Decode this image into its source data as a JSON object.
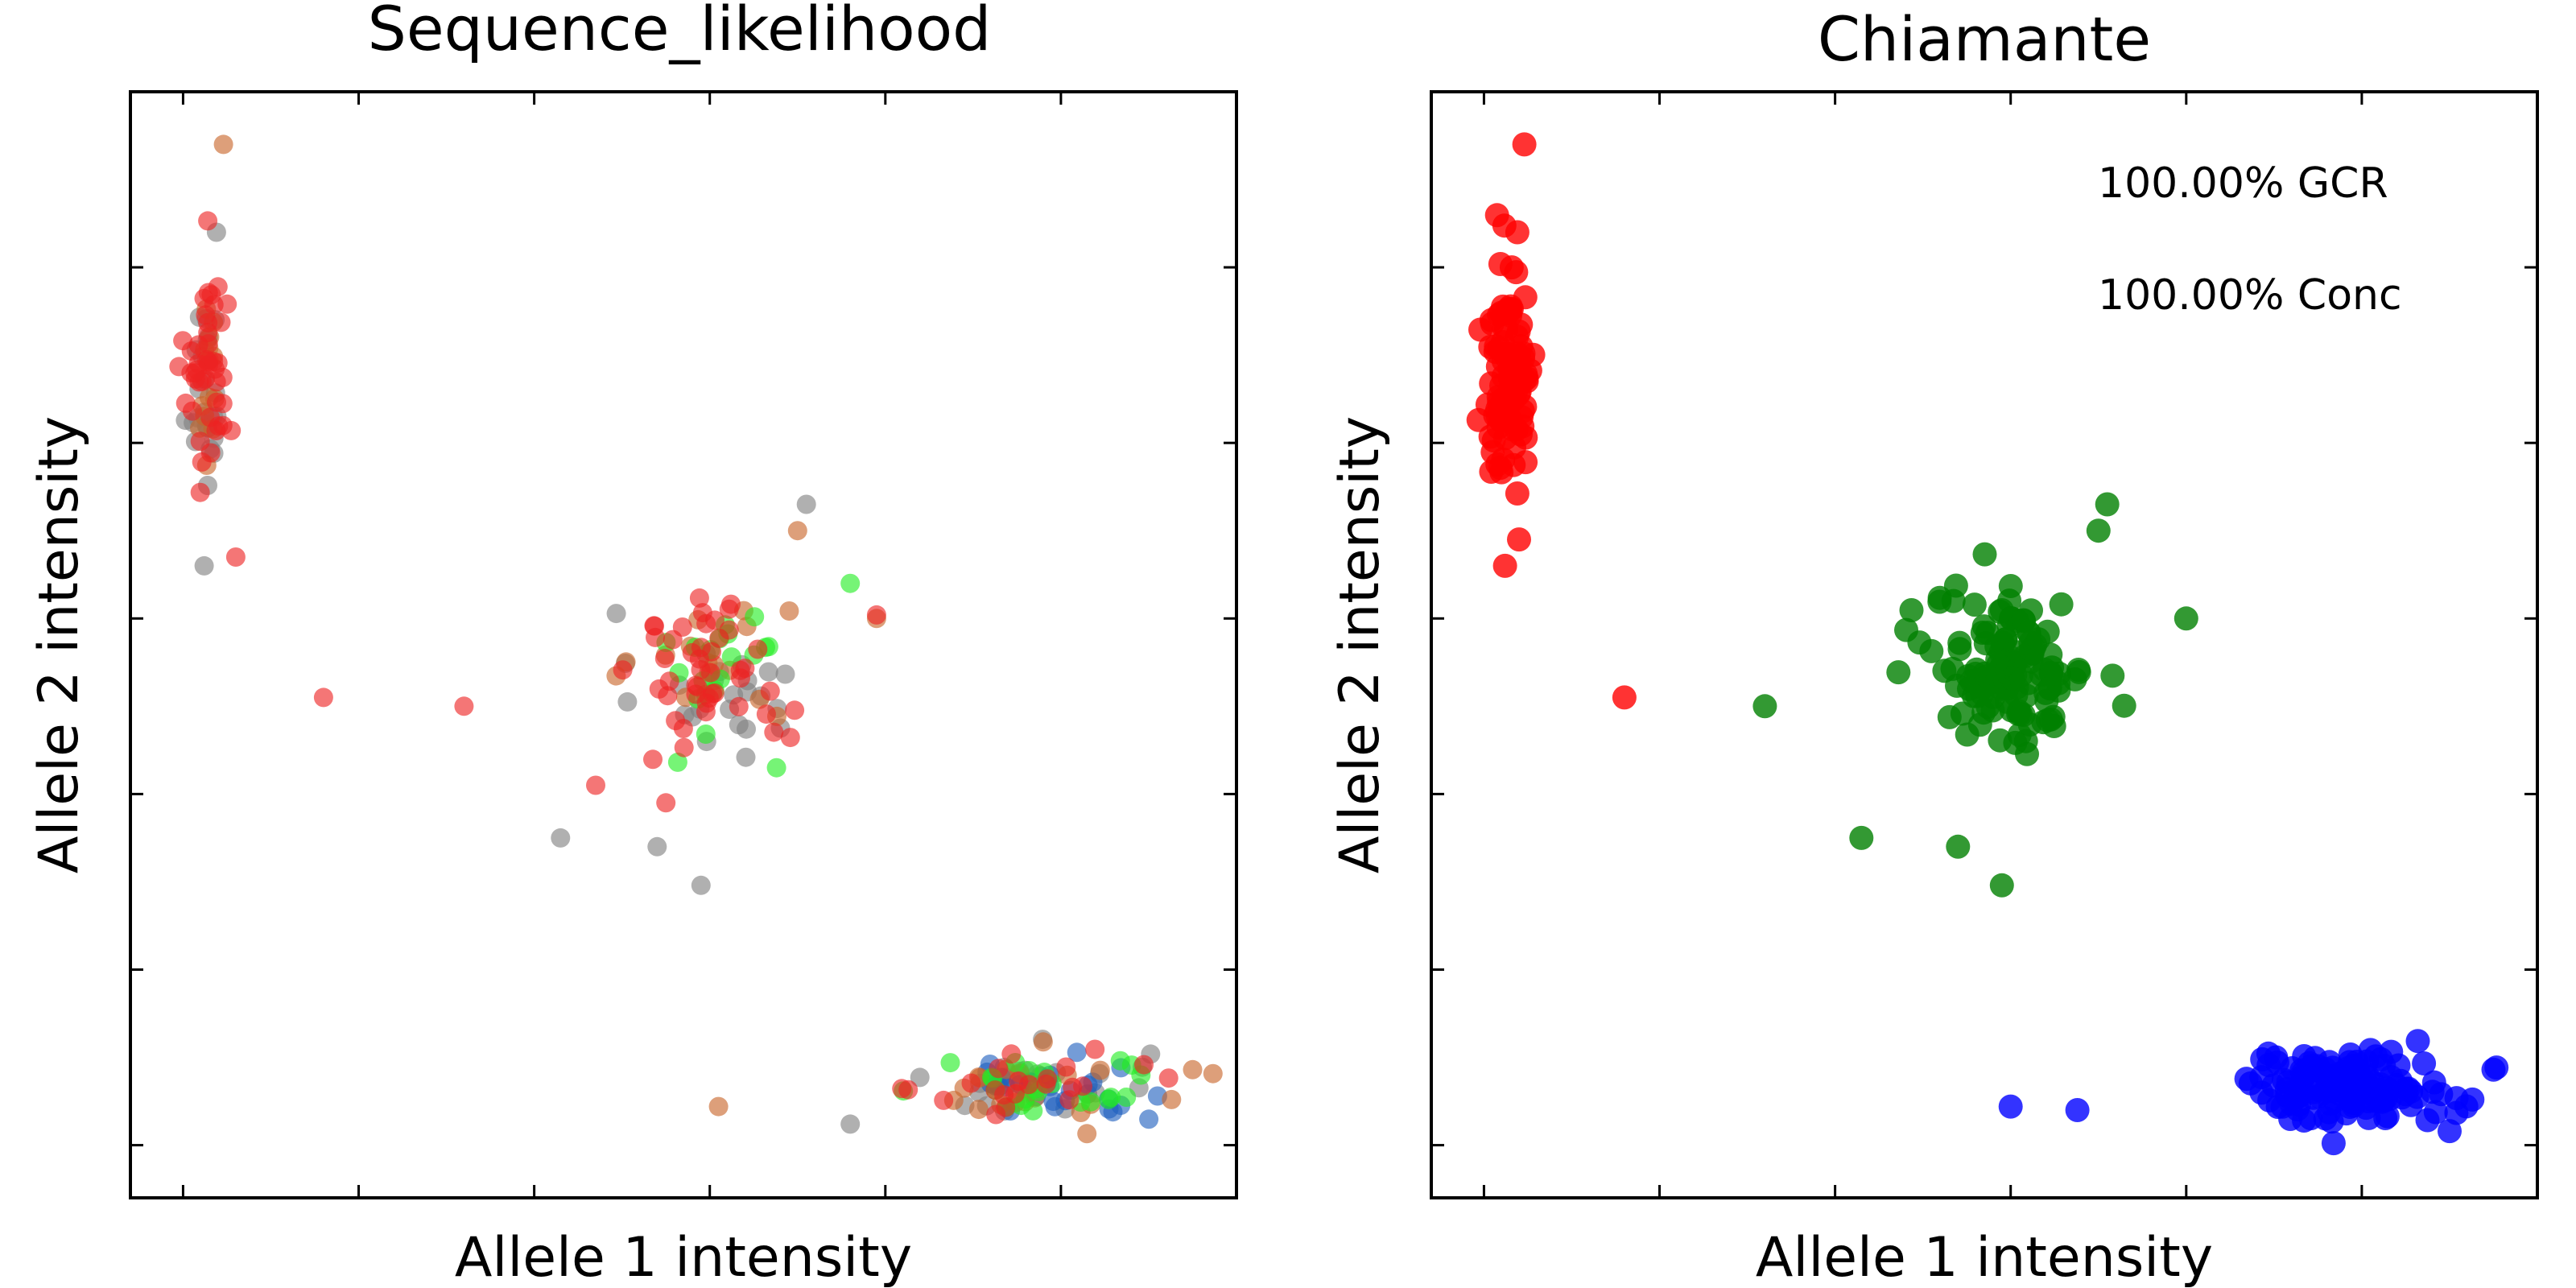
{
  "figure": {
    "panels": [
      {
        "title": "Sequence_likelihood",
        "xlabel": "Allele 1 intensity",
        "ylabel": "Allele 2 intensity",
        "annotations": []
      },
      {
        "title": "Chiamante",
        "xlabel": "Allele 1 intensity",
        "ylabel": "Allele 2 intensity",
        "annotations": [
          "100.00% GCR",
          "100.00% Conc"
        ]
      }
    ]
  },
  "chart_data": [
    {
      "type": "scatter",
      "title": "Sequence_likelihood",
      "xlabel": "Allele 1 intensity",
      "ylabel": "Allele 2 intensity",
      "xlim": [
        -0.3,
        6.0
      ],
      "ylim": [
        -0.3,
        6.0
      ],
      "xticks": [
        0,
        1,
        2,
        3,
        4,
        5,
        6
      ],
      "yticks": [
        0,
        1,
        2,
        3,
        4,
        5,
        6
      ],
      "grid": false,
      "legend": null,
      "series": [
        {
          "color": "#7f7f7f",
          "clusters": [
            {
              "center": [
                0.12,
                4.3
              ],
              "spread": [
                0.06,
                0.28
              ],
              "n": 24
            },
            {
              "center": [
                3.0,
                2.6
              ],
              "spread": [
                0.22,
                0.22
              ],
              "n": 24
            },
            {
              "center": [
                4.9,
                0.35
              ],
              "spread": [
                0.3,
                0.1
              ],
              "n": 26
            }
          ],
          "points": [
            [
              0.19,
              5.2
            ],
            [
              0.12,
              3.3
            ],
            [
              3.55,
              3.65
            ],
            [
              2.15,
              1.75
            ],
            [
              2.7,
              1.7
            ],
            [
              2.95,
              1.48
            ],
            [
              3.8,
              0.12
            ]
          ]
        },
        {
          "color": "#1f5fbf",
          "clusters": [
            {
              "center": [
                4.95,
                0.33
              ],
              "spread": [
                0.3,
                0.1
              ],
              "n": 26
            }
          ],
          "points": [
            [
              5.55,
              0.28
            ],
            [
              4.6,
              0.35
            ]
          ]
        },
        {
          "color": "#c86428",
          "clusters": [
            {
              "center": [
                0.12,
                4.5
              ],
              "spread": [
                0.06,
                0.3
              ],
              "n": 14
            },
            {
              "center": [
                3.0,
                2.7
              ],
              "spread": [
                0.22,
                0.22
              ],
              "n": 16
            },
            {
              "center": [
                4.9,
                0.33
              ],
              "spread": [
                0.3,
                0.1
              ],
              "n": 20
            }
          ],
          "points": [
            [
              0.23,
              5.7
            ],
            [
              3.5,
              3.5
            ],
            [
              3.95,
              3.0
            ],
            [
              3.05,
              0.22
            ],
            [
              5.75,
              0.43
            ],
            [
              5.63,
              0.26
            ]
          ]
        },
        {
          "color": "#22ee22",
          "clusters": [
            {
              "center": [
                3.05,
                2.75
              ],
              "spread": [
                0.2,
                0.22
              ],
              "n": 18
            },
            {
              "center": [
                4.95,
                0.35
              ],
              "spread": [
                0.3,
                0.1
              ],
              "n": 22
            }
          ],
          "points": [
            [
              3.8,
              3.2
            ],
            [
              3.38,
              2.15
            ],
            [
              4.37,
              0.47
            ]
          ]
        },
        {
          "color": "#ee2222",
          "clusters": [
            {
              "center": [
                0.15,
                4.4
              ],
              "spread": [
                0.07,
                0.32
              ],
              "n": 45
            },
            {
              "center": [
                3.0,
                2.7
              ],
              "spread": [
                0.22,
                0.22
              ],
              "n": 46
            },
            {
              "center": [
                4.85,
                0.35
              ],
              "spread": [
                0.3,
                0.1
              ],
              "n": 22
            }
          ],
          "points": [
            [
              0.8,
              2.55
            ],
            [
              1.6,
              2.5
            ],
            [
              0.3,
              3.35
            ],
            [
              2.35,
              2.05
            ],
            [
              2.75,
              1.95
            ],
            [
              3.95,
              3.02
            ]
          ]
        }
      ]
    },
    {
      "type": "scatter",
      "title": "Chiamante",
      "xlabel": "Allele 1 intensity",
      "ylabel": "Allele 2 intensity",
      "xlim": [
        -0.3,
        6.0
      ],
      "ylim": [
        -0.3,
        6.0
      ],
      "xticks": [
        0,
        1,
        2,
        3,
        4,
        5,
        6
      ],
      "yticks": [
        0,
        1,
        2,
        3,
        4,
        5,
        6
      ],
      "grid": false,
      "legend": null,
      "annotations": [
        "100.00% GCR",
        "100.00% Conc"
      ],
      "series": [
        {
          "color": "#ff0000",
          "clusters": [
            {
              "center": [
                0.15,
                4.4
              ],
              "spread": [
                0.07,
                0.32
              ],
              "n": 110
            }
          ],
          "points": [
            [
              0.23,
              5.7
            ],
            [
              0.19,
              5.2
            ],
            [
              0.12,
              3.3
            ],
            [
              0.2,
              3.45
            ],
            [
              0.8,
              2.55
            ]
          ]
        },
        {
          "color": "#008000",
          "clusters": [
            {
              "center": [
                3.0,
                2.7
              ],
              "spread": [
                0.22,
                0.22
              ],
              "n": 130
            }
          ],
          "points": [
            [
              1.6,
              2.5
            ],
            [
              3.55,
              3.65
            ],
            [
              2.15,
              1.75
            ],
            [
              2.7,
              1.7
            ],
            [
              2.95,
              1.48
            ],
            [
              4.0,
              3.0
            ],
            [
              3.5,
              3.5
            ]
          ]
        },
        {
          "color": "#0000ff",
          "clusters": [
            {
              "center": [
                4.9,
                0.34
              ],
              "spread": [
                0.3,
                0.1
              ],
              "n": 130
            }
          ],
          "points": [
            [
              3.0,
              0.22
            ],
            [
              3.38,
              0.2
            ],
            [
              5.75,
              0.43
            ],
            [
              5.63,
              0.26
            ],
            [
              5.5,
              0.08
            ]
          ]
        }
      ]
    }
  ]
}
